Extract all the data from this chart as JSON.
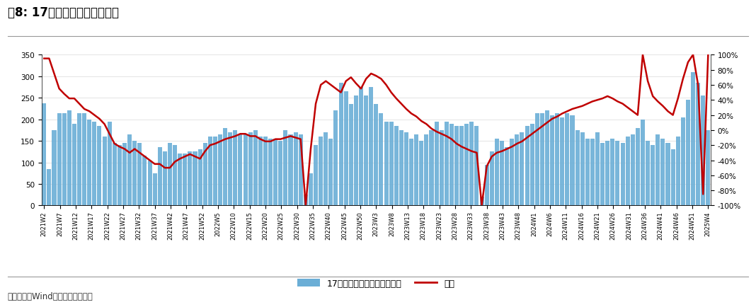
{
  "title": "图8: 17城二手房成交同比增长",
  "source_text": "数据来源：Wind、开源证券研究所",
  "bar_label": "17城二手房成交面积（万方）",
  "line_label": "同比",
  "bar_color": "#6BAED6",
  "line_color": "#C00000",
  "ylim_left": [
    0,
    350
  ],
  "ylim_right": [
    -1.0,
    1.0
  ],
  "yticks_left": [
    0,
    50,
    100,
    150,
    200,
    250,
    300,
    350
  ],
  "yticks_right": [
    -1.0,
    -0.8,
    -0.6,
    -0.4,
    -0.2,
    0.0,
    0.2,
    0.4,
    0.6,
    0.8,
    1.0
  ],
  "background_color": "#FFFFFF",
  "title_fontsize": 12,
  "tick_fontsize": 7.5,
  "legend_fontsize": 9,
  "bar_values": [
    238,
    85,
    175,
    215,
    215,
    220,
    190,
    215,
    215,
    200,
    195,
    185,
    160,
    195,
    145,
    140,
    145,
    165,
    150,
    145,
    115,
    105,
    75,
    135,
    125,
    145,
    140,
    120,
    120,
    125,
    125,
    130,
    145,
    160,
    160,
    165,
    180,
    170,
    175,
    165,
    165,
    170,
    175,
    160,
    160,
    155,
    155,
    150,
    175,
    165,
    170,
    165,
    25,
    75,
    140,
    160,
    170,
    155,
    220,
    285,
    265,
    235,
    255,
    275,
    255,
    275,
    235,
    215,
    195,
    195,
    185,
    175,
    170,
    155,
    165,
    150,
    165,
    175,
    195,
    175,
    195,
    190,
    185,
    185,
    190,
    195,
    185,
    20,
    95,
    125,
    155,
    150,
    135,
    155,
    165,
    170,
    185,
    190,
    215,
    215,
    220,
    210,
    215,
    205,
    215,
    210,
    175,
    170,
    155,
    155,
    170,
    145,
    150,
    155,
    150,
    145,
    160,
    165,
    180,
    200,
    150,
    140,
    165,
    155,
    145,
    130,
    160,
    205,
    245,
    310,
    285,
    255,
    175
  ],
  "line_values": [
    0.95,
    0.95,
    0.75,
    0.55,
    0.48,
    0.42,
    0.42,
    0.35,
    0.28,
    0.25,
    0.2,
    0.15,
    0.08,
    -0.05,
    -0.18,
    -0.22,
    -0.25,
    -0.3,
    -0.25,
    -0.3,
    -0.35,
    -0.4,
    -0.45,
    -0.45,
    -0.5,
    -0.5,
    -0.42,
    -0.38,
    -0.35,
    -0.32,
    -0.35,
    -0.38,
    -0.28,
    -0.2,
    -0.18,
    -0.15,
    -0.12,
    -0.1,
    -0.08,
    -0.05,
    -0.05,
    -0.08,
    -0.08,
    -0.12,
    -0.15,
    -0.15,
    -0.12,
    -0.12,
    -0.1,
    -0.08,
    -0.1,
    -0.12,
    -1.0,
    -0.25,
    0.35,
    0.6,
    0.65,
    0.6,
    0.55,
    0.5,
    0.65,
    0.7,
    0.62,
    0.55,
    0.68,
    0.75,
    0.72,
    0.68,
    0.6,
    0.5,
    0.42,
    0.35,
    0.28,
    0.22,
    0.18,
    0.12,
    0.08,
    0.02,
    -0.02,
    -0.05,
    -0.08,
    -0.12,
    -0.18,
    -0.22,
    -0.25,
    -0.28,
    -0.3,
    -1.0,
    -0.48,
    -0.35,
    -0.3,
    -0.28,
    -0.25,
    -0.22,
    -0.18,
    -0.15,
    -0.1,
    -0.05,
    0.0,
    0.05,
    0.1,
    0.15,
    0.18,
    0.22,
    0.25,
    0.28,
    0.3,
    0.32,
    0.35,
    0.38,
    0.4,
    0.42,
    0.45,
    0.42,
    0.38,
    0.35,
    0.3,
    0.25,
    0.2,
    1.0,
    0.65,
    0.45,
    0.38,
    0.32,
    0.25,
    0.2,
    0.42,
    0.68,
    0.9,
    1.0,
    0.6,
    -0.85,
    1.0
  ],
  "x_tick_labels": [
    "2021W2",
    "2021W7",
    "2021W12",
    "2021W17",
    "2021W22",
    "2021W27",
    "2021W32",
    "2021W37",
    "2021W42",
    "2021W47",
    "2021W52",
    "2022W5",
    "2022W10",
    "2022W15",
    "2022W20",
    "2022W25",
    "2022W30",
    "2022W35",
    "2022W40",
    "2022W45",
    "2022W50",
    "2023W3",
    "2023W8",
    "2023W13",
    "2023W18",
    "2023W23",
    "2023W28",
    "2023W33",
    "2023W38",
    "2023W43",
    "2023W48",
    "2024W1",
    "2024W6",
    "2024W11",
    "2024W16",
    "2024W21",
    "2024W26",
    "2024W31",
    "2024W36",
    "2024W41",
    "2024W46",
    "2024W51",
    "2025W4"
  ]
}
